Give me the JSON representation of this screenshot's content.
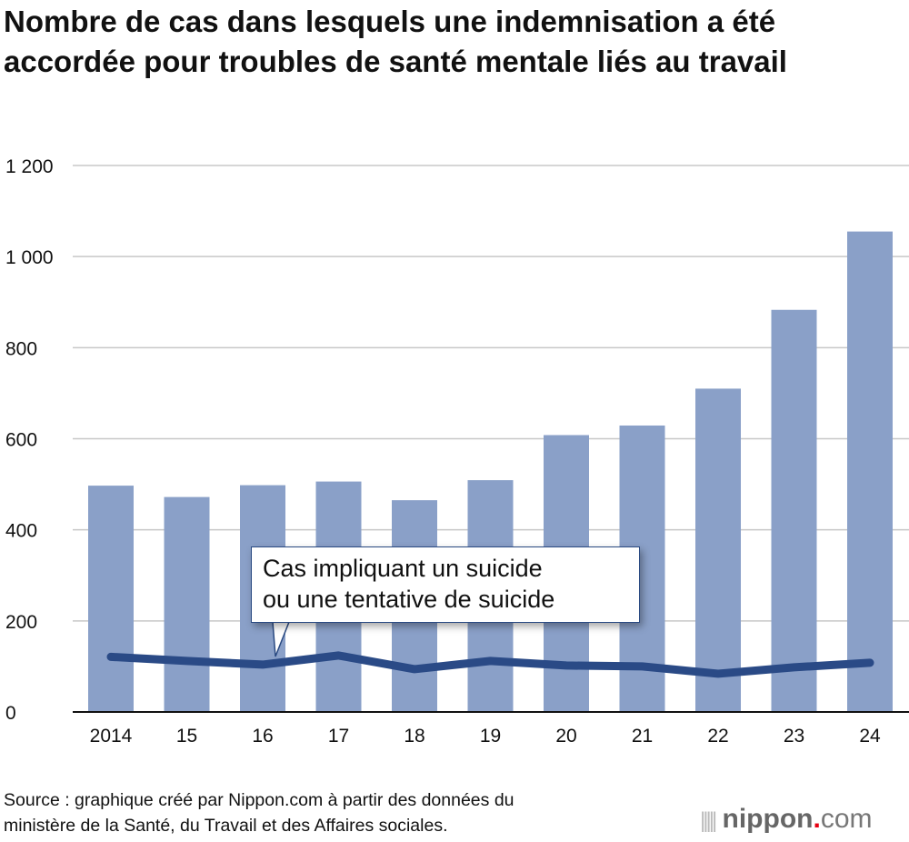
{
  "chart_data": {
    "type": "bar",
    "title": "Nombre de cas dans lesquels une indemnisation a été accordée pour troubles de santé mentale liés au travail",
    "categories": [
      "2014",
      "15",
      "16",
      "17",
      "18",
      "19",
      "20",
      "21",
      "22",
      "23",
      "24"
    ],
    "ylim": [
      0,
      1200
    ],
    "yticks": [
      0,
      200,
      400,
      600,
      800,
      1000,
      1200
    ],
    "ytick_labels": [
      "0",
      "200",
      "400",
      "600",
      "800",
      "1 000",
      "1 200"
    ],
    "grid": true,
    "series": [
      {
        "type": "bar",
        "values": [
          497,
          472,
          498,
          506,
          465,
          509,
          608,
          629,
          710,
          883,
          1055
        ],
        "color": "#8aa0c8"
      },
      {
        "type": "line",
        "name": "Cas impliquant un suicide ou une tentative de suicide",
        "values": [
          121,
          112,
          104,
          124,
          94,
          112,
          102,
          100,
          84,
          98,
          108
        ],
        "color": "#2a4a86"
      }
    ],
    "annotation_lines": [
      "Cas impliquant un suicide",
      "ou une tentative de suicide"
    ]
  },
  "source_lines": [
    "Source : graphique créé par Nippon.com à partir des données du",
    "ministère de la Santé, du Travail et des Affaires sociales."
  ],
  "logo": {
    "name": "nippon",
    "dot": ".",
    "suffix": "com"
  }
}
